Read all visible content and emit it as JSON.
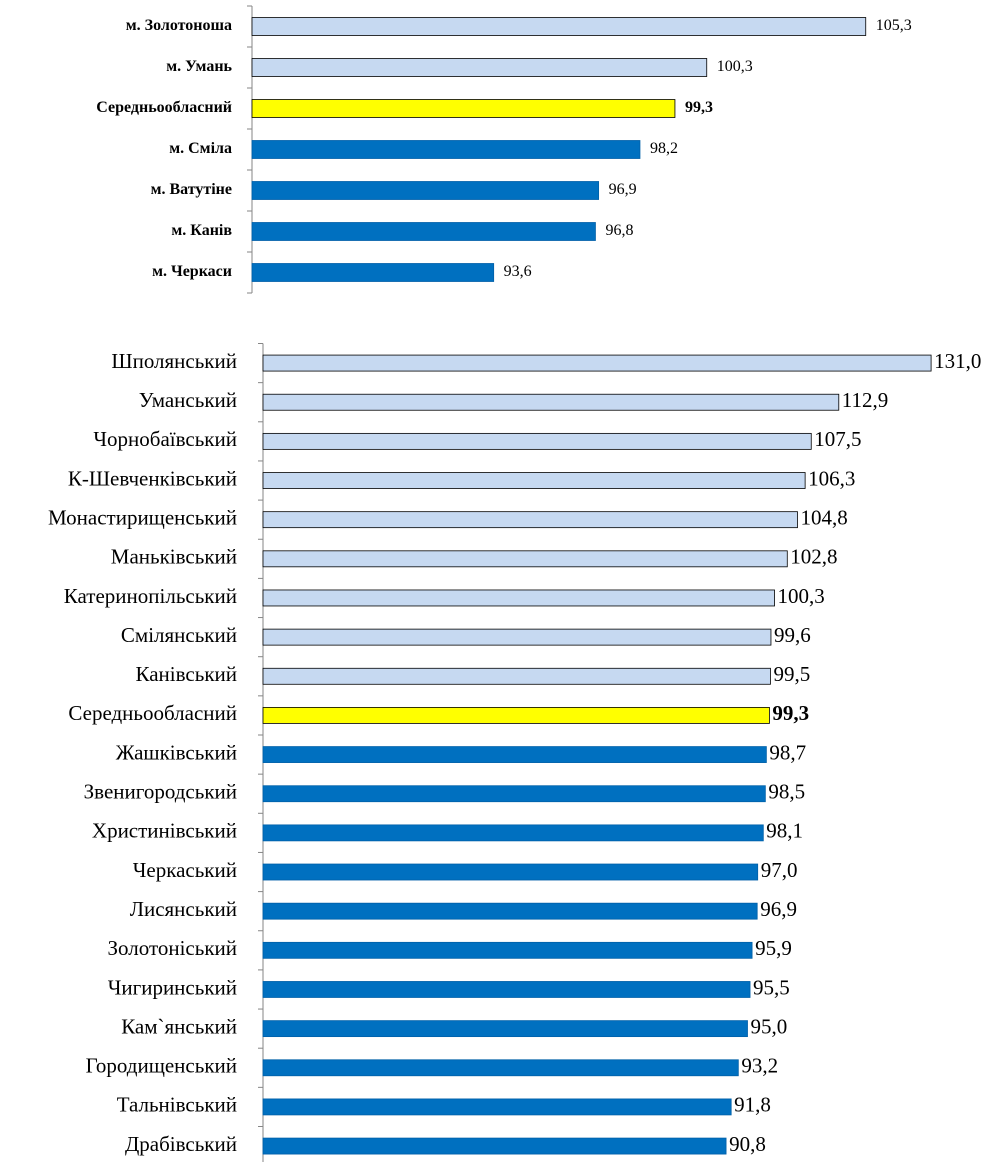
{
  "chart_data": [
    {
      "type": "bar",
      "orientation": "horizontal",
      "categories": [
        "м. Золотоноша",
        "м. Умань",
        "Середньообласний",
        "м. Сміла",
        "м. Ватутіне",
        "м. Канів",
        "м. Черкаси"
      ],
      "values": [
        105.3,
        100.3,
        99.3,
        98.2,
        96.9,
        96.8,
        93.6
      ],
      "value_labels": [
        "105,3",
        "100,3",
        "99,3",
        "98,2",
        "96,9",
        "96,8",
        "93,6"
      ],
      "colors": [
        "#c6d9f1",
        "#c6d9f1",
        "#ffff00",
        "#0070c0",
        "#0070c0",
        "#0070c0",
        "#0070c0"
      ],
      "xlim": [
        86,
        106
      ]
    },
    {
      "type": "bar",
      "orientation": "horizontal",
      "categories": [
        "Шполянський",
        "Уманський",
        "Чорнобаївський",
        "К-Шевченківський",
        "Монастирищенський",
        "Маньківський",
        "Катеринопільський",
        "Смілянський",
        "Канівський",
        "Середньообласний",
        "Жашківський",
        "Звенигородський",
        "Христинівський",
        "Черкаський",
        "Лисянський",
        "Золотоніський",
        "Чигиринський",
        "Кам`янський",
        "Городищенський",
        "Тальнівський",
        "Драбівський"
      ],
      "values": [
        131.0,
        112.9,
        107.5,
        106.3,
        104.8,
        102.8,
        100.3,
        99.6,
        99.5,
        99.3,
        98.7,
        98.5,
        98.1,
        97.0,
        96.9,
        95.9,
        95.5,
        95.0,
        93.2,
        91.8,
        90.8
      ],
      "value_labels": [
        "131,0",
        "112,9",
        "107,5",
        "106,3",
        "104,8",
        "102,8",
        "100,3",
        "99,6",
        "99,5",
        "99,3",
        "98,7",
        "98,5",
        "98,1",
        "97,0",
        "96,9",
        "95,9",
        "95,5",
        "95,0",
        "93,2",
        "91,8",
        "90,8"
      ],
      "colors": [
        "#c6d9f1",
        "#c6d9f1",
        "#c6d9f1",
        "#c6d9f1",
        "#c6d9f1",
        "#c6d9f1",
        "#c6d9f1",
        "#c6d9f1",
        "#c6d9f1",
        "#ffff00",
        "#0070c0",
        "#0070c0",
        "#0070c0",
        "#0070c0",
        "#0070c0",
        "#0070c0",
        "#0070c0",
        "#0070c0",
        "#0070c0",
        "#0070c0",
        "#0070c0"
      ],
      "xlim": [
        0,
        140
      ]
    }
  ]
}
